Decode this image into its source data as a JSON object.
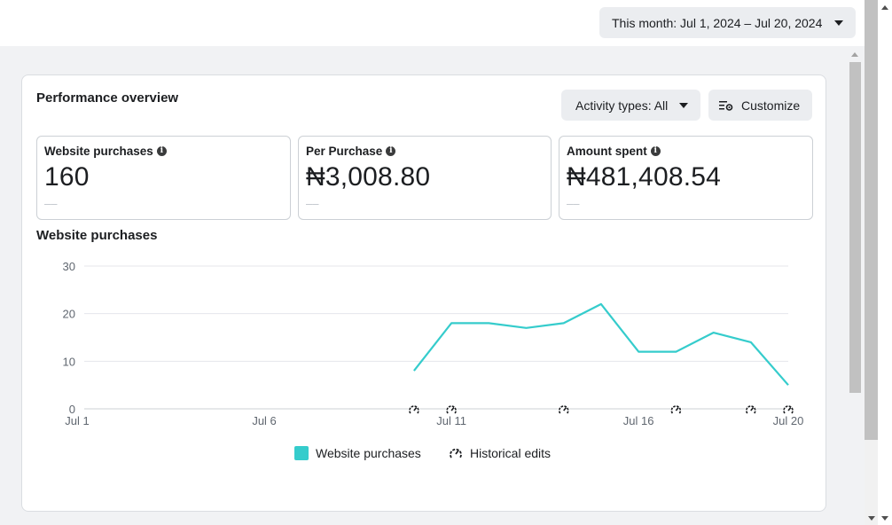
{
  "header": {
    "date_range_label": "This month: Jul 1, 2024 – Jul 20, 2024"
  },
  "card": {
    "title": "Performance overview",
    "activity_button": "Activity types: All",
    "customize_button": "Customize",
    "metrics": [
      {
        "label": "Website purchases",
        "value": "160",
        "delta": "––"
      },
      {
        "label": "Per Purchase",
        "value": "₦3,008.80",
        "delta": "––"
      },
      {
        "label": "Amount spent",
        "value": "₦481,408.54",
        "delta": "––"
      }
    ],
    "chart_title": "Website purchases"
  },
  "legend": {
    "series_label": "Website purchases",
    "edits_label": "Historical edits"
  },
  "colors": {
    "series": "#35cccc",
    "grid": "#e4e6eb"
  },
  "chart_data": {
    "type": "line",
    "title": "Website purchases",
    "xlabel": "",
    "ylabel": "",
    "x": [
      "Jul 1",
      "Jul 2",
      "Jul 3",
      "Jul 4",
      "Jul 5",
      "Jul 6",
      "Jul 7",
      "Jul 8",
      "Jul 9",
      "Jul 10",
      "Jul 11",
      "Jul 12",
      "Jul 13",
      "Jul 14",
      "Jul 15",
      "Jul 16",
      "Jul 17",
      "Jul 18",
      "Jul 19",
      "Jul 20"
    ],
    "x_tick_labels": [
      "Jul 1",
      "Jul 6",
      "Jul 11",
      "Jul 16",
      "Jul 20"
    ],
    "y_ticks": [
      0,
      10,
      20,
      30
    ],
    "ylim": [
      0,
      30
    ],
    "grid": true,
    "legend_position": "bottom-center",
    "series": [
      {
        "name": "Website purchases",
        "values": [
          null,
          null,
          null,
          null,
          null,
          null,
          null,
          null,
          null,
          8,
          18,
          18,
          17,
          18,
          22,
          12,
          12,
          16,
          14,
          5
        ]
      }
    ],
    "historical_edits": [
      "Jul 10",
      "Jul 11",
      "Jul 14",
      "Jul 17",
      "Jul 19",
      "Jul 20"
    ]
  }
}
